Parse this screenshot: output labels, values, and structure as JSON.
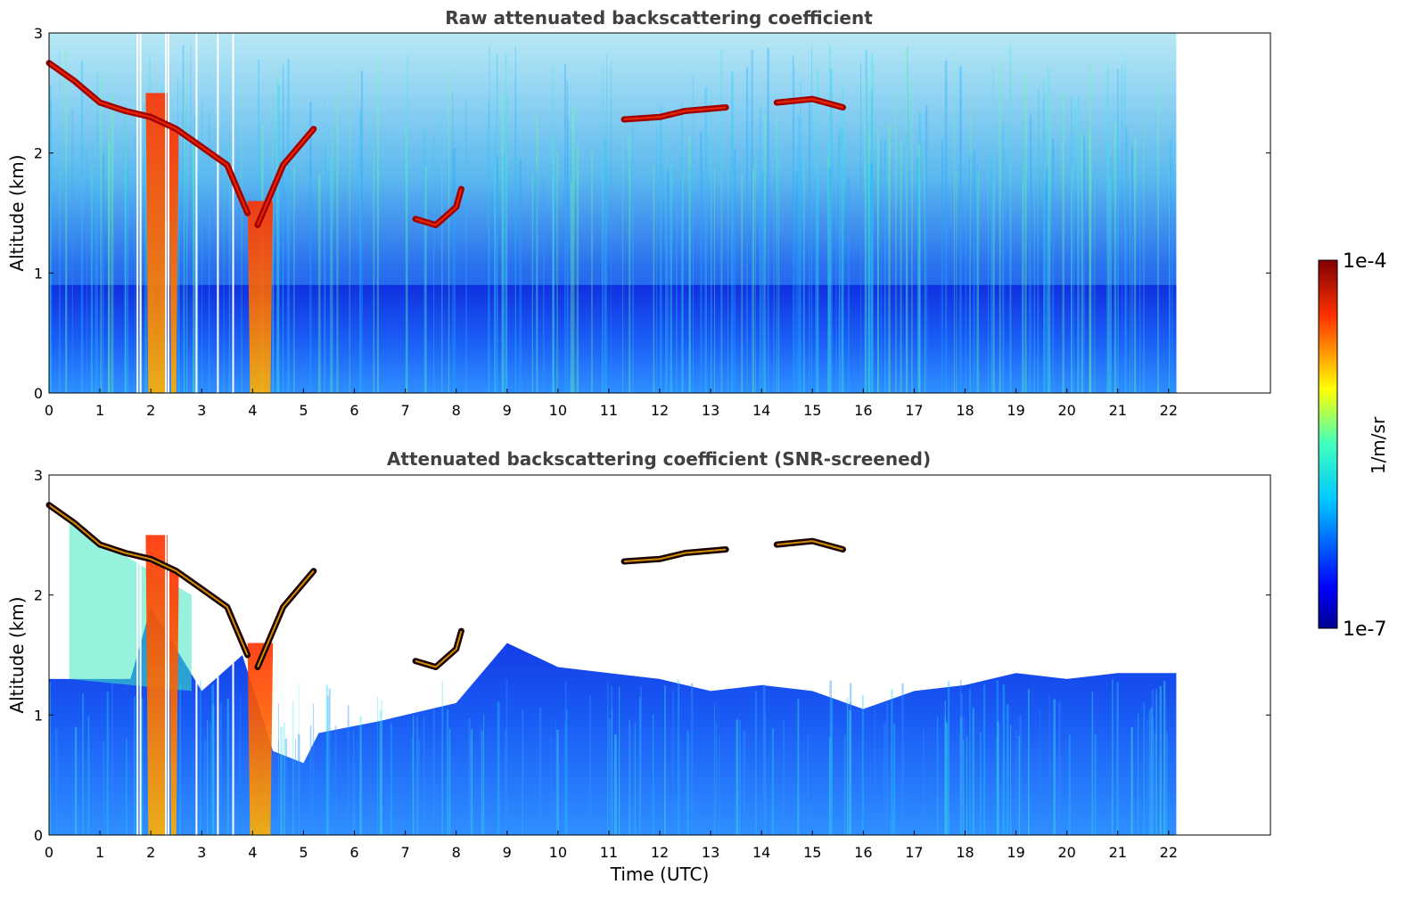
{
  "chart_data": [
    {
      "type": "heatmap",
      "title": "Raw attenuated backscattering coefficient",
      "xlabel": "",
      "ylabel": "Altitude (km)",
      "xlim": [
        0,
        24
      ],
      "ylim": [
        0,
        3
      ],
      "x_ticks": [
        "0",
        "1",
        "2",
        "3",
        "4",
        "5",
        "6",
        "7",
        "8",
        "9",
        "10",
        "11",
        "12",
        "13",
        "14",
        "15",
        "16",
        "17",
        "18",
        "19",
        "20",
        "21",
        "22"
      ],
      "y_ticks": [
        "0",
        "1",
        "2",
        "3"
      ],
      "data_extent_x": [
        0,
        22.15
      ],
      "colormap": "jet",
      "color_scale": "log",
      "color_range": [
        1e-07,
        0.0001
      ],
      "features": [
        {
          "x": [
            0.0,
            0.5,
            1.0,
            1.5,
            2.0,
            2.5,
            3.0,
            3.5,
            3.9
          ],
          "y": [
            2.75,
            2.6,
            2.42,
            2.35,
            2.3,
            2.2,
            2.05,
            1.9,
            1.5
          ],
          "kind": "cloud layer"
        },
        {
          "x": [
            4.1,
            4.3,
            4.6,
            5.0,
            5.2
          ],
          "y": [
            1.4,
            1.6,
            1.9,
            2.1,
            2.2
          ],
          "kind": "cloud layer"
        },
        {
          "x": [
            7.2,
            7.6,
            8.0,
            8.1
          ],
          "y": [
            1.45,
            1.4,
            1.55,
            1.7
          ],
          "kind": "cloud layer"
        },
        {
          "x": [
            11.3,
            12.0,
            12.5,
            13.3
          ],
          "y": [
            2.28,
            2.3,
            2.35,
            2.38
          ],
          "kind": "cloud layer"
        },
        {
          "x": [
            14.3,
            15.0,
            15.6
          ],
          "y": [
            2.42,
            2.45,
            2.38
          ],
          "kind": "cloud layer"
        }
      ],
      "boundary_layer_top_km": 0.9
    },
    {
      "type": "heatmap",
      "title": "Attenuated backscattering coefficient (SNR-screened)",
      "xlabel": "Time (UTC)",
      "ylabel": "Altitude (km)",
      "xlim": [
        0,
        24
      ],
      "ylim": [
        0,
        3
      ],
      "x_ticks": [
        "0",
        "1",
        "2",
        "3",
        "4",
        "5",
        "6",
        "7",
        "8",
        "9",
        "10",
        "11",
        "12",
        "13",
        "14",
        "15",
        "16",
        "17",
        "18",
        "19",
        "20",
        "21",
        "22"
      ],
      "y_ticks": [
        "0",
        "1",
        "2",
        "3"
      ],
      "data_extent_x": [
        0,
        22.15
      ],
      "colormap": "jet",
      "color_scale": "log",
      "color_range": [
        1e-07,
        0.0001
      ],
      "screened_top_km": {
        "x": [
          0,
          1.6,
          2.0,
          3.0,
          3.8,
          4.4,
          5.0,
          5.3,
          6.5,
          7.0,
          8.0,
          9.0,
          10.0,
          11.0,
          12.0,
          13.0,
          14.0,
          15.0,
          16.0,
          17.0,
          18.0,
          19.0,
          20.0,
          21.0,
          22.15
        ],
        "y": [
          1.3,
          1.3,
          1.9,
          1.2,
          1.5,
          0.7,
          0.6,
          0.85,
          0.95,
          1.0,
          1.1,
          1.6,
          1.4,
          1.35,
          1.3,
          1.2,
          1.25,
          1.2,
          1.05,
          1.2,
          1.25,
          1.35,
          1.3,
          1.35,
          1.35
        ]
      }
    }
  ],
  "colorbar": {
    "max_label": "1e-4",
    "min_label": "1e-7",
    "unit_label": "1/m/sr"
  }
}
